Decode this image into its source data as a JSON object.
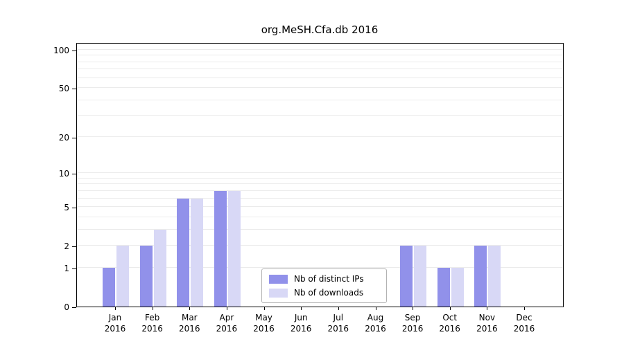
{
  "chart_data": {
    "type": "bar",
    "title": "org.MeSH.Cfa.db 2016",
    "year": "2016",
    "categories": [
      "Jan",
      "Feb",
      "Mar",
      "Apr",
      "May",
      "Jun",
      "Jul",
      "Aug",
      "Sep",
      "Oct",
      "Nov",
      "Dec"
    ],
    "series": [
      {
        "name": "Nb of distinct IPs",
        "color": "#9191ea",
        "values": [
          1,
          2,
          6,
          7,
          0,
          0,
          0,
          0,
          2,
          1,
          2,
          0
        ]
      },
      {
        "name": "Nb of downloads",
        "color": "#d8d8f6",
        "values": [
          2,
          3,
          6,
          7,
          0,
          0,
          0,
          0,
          2,
          1,
          2,
          0
        ]
      }
    ],
    "yticks": [
      0,
      1,
      2,
      5,
      10,
      20,
      50,
      100
    ],
    "gridlines": [
      1,
      2,
      3,
      4,
      5,
      6,
      7,
      8,
      9,
      10,
      20,
      30,
      40,
      50,
      60,
      70,
      80,
      90,
      100
    ],
    "ylim": [
      0,
      100
    ],
    "yscale": "log1p",
    "grid": "horizontal",
    "legend_position": "bottom-center"
  }
}
